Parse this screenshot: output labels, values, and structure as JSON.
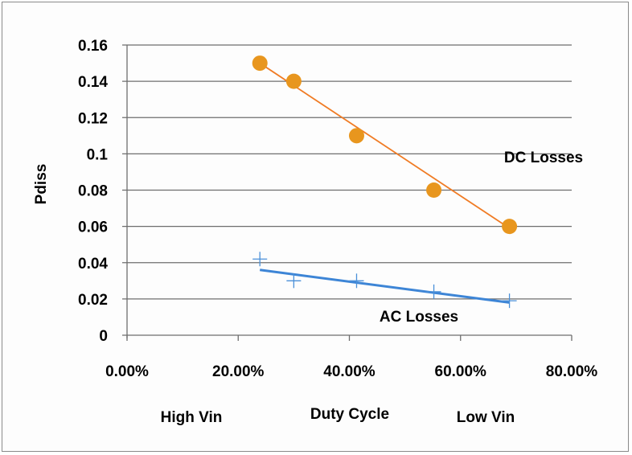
{
  "chart_data": {
    "type": "scatter",
    "title": "",
    "xlabel": "Duty Cycle",
    "ylabel": "Pdiss",
    "xlim": [
      0,
      0.8
    ],
    "ylim": [
      0,
      0.16
    ],
    "grid": "horizontal",
    "x_ticks": [
      0,
      0.2,
      0.4,
      0.6,
      0.8
    ],
    "x_tick_labels": [
      "0.00%",
      "20.00%",
      "40.00%",
      "60.00%",
      "80.00%"
    ],
    "y_ticks": [
      0,
      0.02,
      0.04,
      0.06,
      0.08,
      0.1,
      0.12,
      0.14,
      0.16
    ],
    "y_tick_labels": [
      "0",
      "0.02",
      "0.04",
      "0.06",
      "0.08",
      "0.1",
      "0.12",
      "0.14",
      "0.16"
    ],
    "x_sub_labels": {
      "left": "High Vin",
      "right": "Low Vin"
    },
    "series": [
      {
        "name": "DC Losses",
        "color": "#E8961E",
        "marker": "circle",
        "x": [
          0.239,
          0.3,
          0.413,
          0.552,
          0.688
        ],
        "y": [
          0.15,
          0.14,
          0.11,
          0.08,
          0.06
        ],
        "trendline": {
          "x": [
            0.239,
            0.688
          ],
          "y": [
            0.15,
            0.059
          ],
          "color": "#F07B24"
        }
      },
      {
        "name": "AC Losses",
        "color": "#4A90D9",
        "marker": "plus",
        "x": [
          0.239,
          0.3,
          0.413,
          0.552,
          0.688
        ],
        "y": [
          0.042,
          0.03,
          0.03,
          0.024,
          0.019
        ],
        "trendline": {
          "x": [
            0.239,
            0.688
          ],
          "y": [
            0.036,
            0.018
          ],
          "color": "#3D85D6"
        }
      }
    ],
    "annotations": [
      {
        "text": "DC Losses",
        "x": 0.78,
        "y": 0.09
      },
      {
        "text": "AC Losses",
        "x": 0.55,
        "y": 0.009
      }
    ]
  }
}
